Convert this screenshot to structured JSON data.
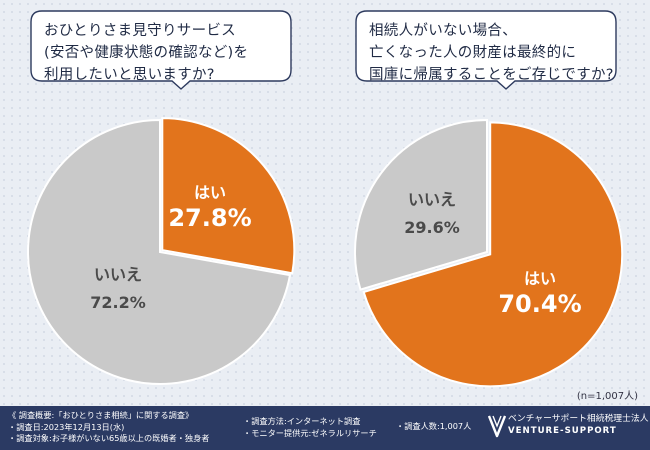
{
  "chart_data": [
    {
      "type": "pie",
      "title_lines": [
        "おひとりさま見守りサービス",
        "(安否や健康状態の確認など)を",
        "利用したいと思いますか?"
      ],
      "slices": [
        {
          "label": "はい",
          "value": 27.8,
          "display": "27.8%",
          "color": "#e2741c"
        },
        {
          "label": "いいえ",
          "value": 72.2,
          "display": "72.2%",
          "color": "#c9c9c9"
        }
      ]
    },
    {
      "type": "pie",
      "title_lines": [
        "相続人がいない場合、",
        "亡くなった人の財産は最終的に",
        "国庫に帰属することをご存じですか?"
      ],
      "slices": [
        {
          "label": "はい",
          "value": 70.4,
          "display": "70.4%",
          "color": "#e2741c"
        },
        {
          "label": "いいえ",
          "value": 29.6,
          "display": "29.6%",
          "color": "#c9c9c9"
        }
      ]
    }
  ],
  "sample_note": "(n=1,007人)",
  "footer": {
    "col1": [
      "《 調査概要:「おひとりさま相続」に関する調査》",
      "・調査日:2023年12月13日(水)",
      "・調査対象:お子様がいない65歳以上の既婚者・独身者"
    ],
    "col2": [
      "・調査方法:インターネット調査",
      "・モニター提供元:ゼネラルリサーチ"
    ],
    "col3": [
      "・調査人数:1,007人"
    ],
    "logo_name": "ベンチャーサポート相続税理士法人",
    "logo_sub": "VENTURE-SUPPORT"
  },
  "colors": {
    "accent": "#e2741c",
    "neutral": "#c9c9c9",
    "footer_bg": "#2b3a63",
    "text": "#1f2a44"
  }
}
